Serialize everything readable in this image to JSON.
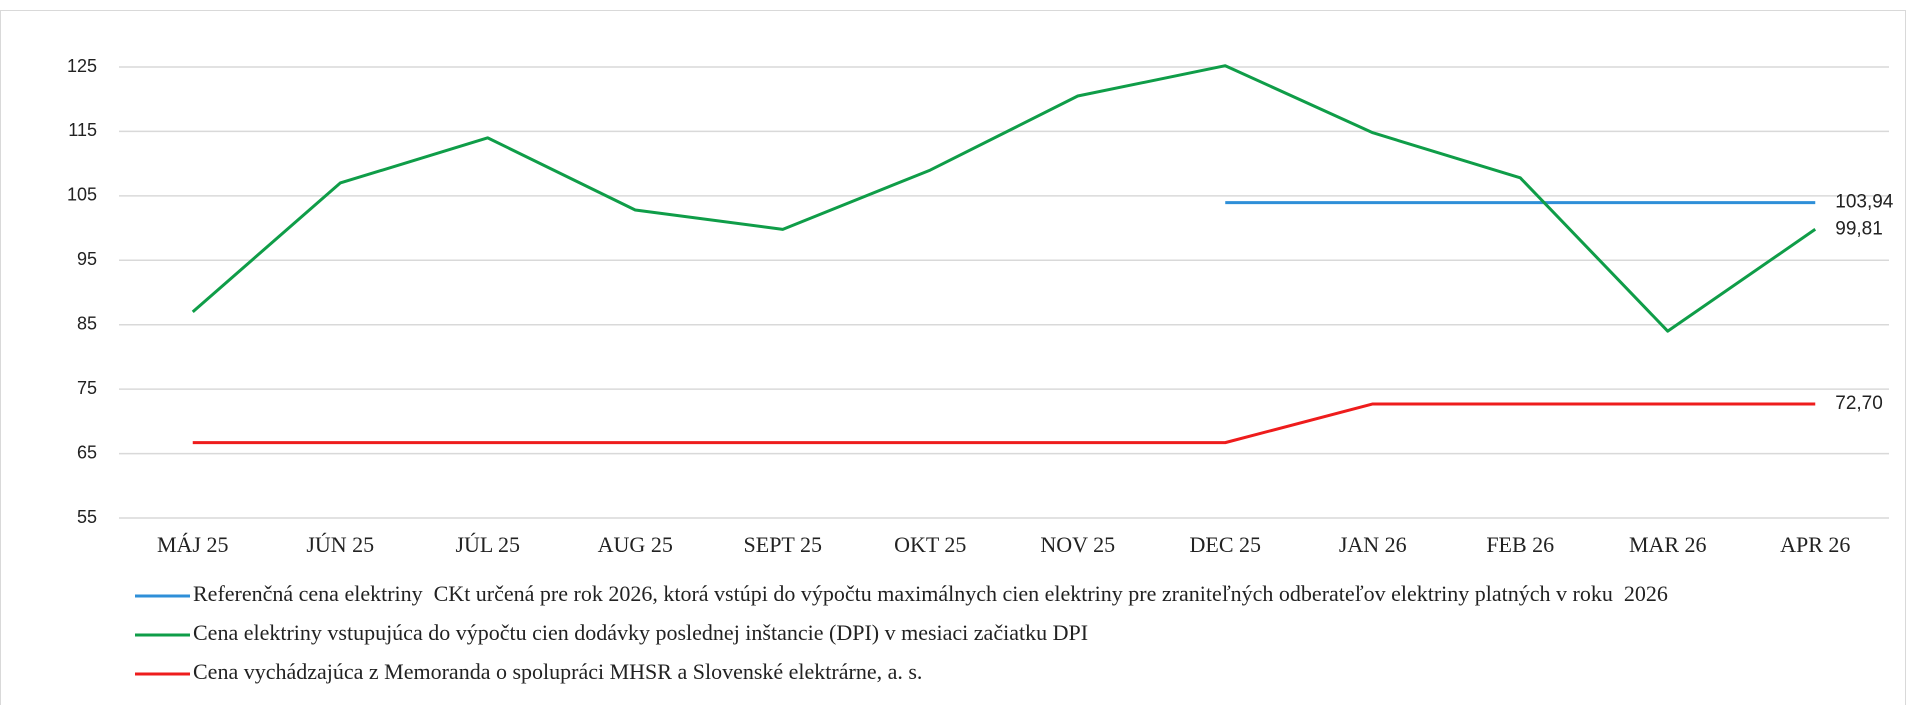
{
  "chart_data": {
    "type": "line",
    "categories": [
      "MÁJ 25",
      "JÚN 25",
      "JÚL 25",
      "AUG 25",
      "SEPT 25",
      "OKT 25",
      "NOV 25",
      "DEC 25",
      "JAN 26",
      "FEB 26",
      "MAR 26",
      "APR 26"
    ],
    "series": [
      {
        "name": "Referenčná cena elektriny  CKt určená pre rok 2026, ktorá vstúpi do výpočtu maximálnych cien elektriny pre zraniteľných odberateľov elektriny platných v roku  2026",
        "color": "#2e8fd8",
        "values": [
          null,
          null,
          null,
          null,
          null,
          null,
          null,
          103.94,
          103.94,
          103.94,
          103.94,
          103.94
        ],
        "value_labels": [
          null,
          null,
          null,
          null,
          null,
          null,
          null,
          null,
          null,
          null,
          null,
          "103,94"
        ]
      },
      {
        "name": "Cena elektriny vstupujúca do výpočtu cien dodávky poslednej inštancie (DPI) v mesiaci začiatku DPI",
        "color": "#0f9d48",
        "values": [
          87,
          107,
          114,
          102.8,
          99.8,
          109,
          120.5,
          125.2,
          114.8,
          107.8,
          84,
          99.81
        ],
        "value_labels": [
          null,
          null,
          null,
          null,
          null,
          null,
          null,
          null,
          null,
          null,
          null,
          "99,81"
        ]
      },
      {
        "name": "Cena vychádzajúca z Memoranda o spolupráci MHSR a Slovenské elektrárne, a. s.",
        "color": "#ee1c1c",
        "values": [
          66.7,
          66.7,
          66.7,
          66.7,
          66.7,
          66.7,
          66.7,
          66.7,
          72.7,
          72.7,
          72.7,
          72.7
        ],
        "value_labels": [
          null,
          null,
          null,
          null,
          null,
          null,
          null,
          null,
          null,
          null,
          null,
          "72,70"
        ]
      }
    ],
    "ylim": [
      55,
      125
    ],
    "yticks": [
      55,
      65,
      75,
      85,
      95,
      105,
      115,
      125
    ],
    "grid": true
  }
}
